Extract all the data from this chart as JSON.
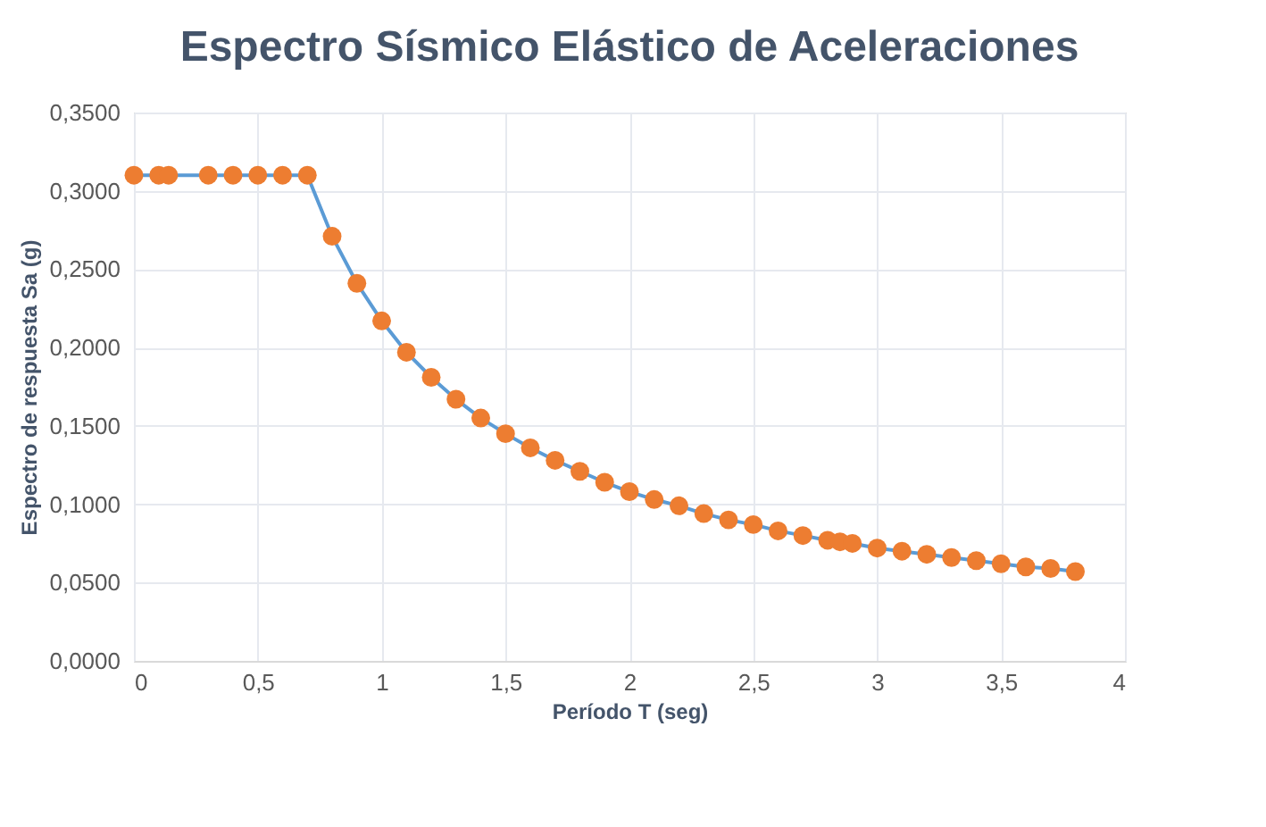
{
  "chart_data": {
    "type": "line",
    "title": "Espectro Sísmico Elástico de Aceleraciones",
    "xlabel": "Período T (seg)",
    "ylabel": "Espectro de respuesta Sa (g)",
    "x": [
      0,
      0.1,
      0.14,
      0.3,
      0.4,
      0.5,
      0.6,
      0.7,
      0.8,
      0.9,
      1.0,
      1.1,
      1.2,
      1.3,
      1.4,
      1.5,
      1.6,
      1.7,
      1.8,
      1.9,
      2.0,
      2.1,
      2.2,
      2.3,
      2.4,
      2.5,
      2.6,
      2.7,
      2.8,
      2.85,
      2.9,
      3.0,
      3.1,
      3.2,
      3.3,
      3.4,
      3.5,
      3.6,
      3.7,
      3.8
    ],
    "series": [
      {
        "color": "#5b9bd5",
        "colors": [
          "#ed7d31",
          "#ed7d31",
          "#ed7d31",
          "#ed7d31",
          "#ed7d31",
          "#ed7d31",
          "#ed7d31",
          "#ed7d31",
          "#ed7d31",
          "#ed7d31",
          "#ed7d31",
          "#ed7d31",
          "#ed7d31",
          "#ed7d31",
          "#ed7d31",
          "#ed7d31",
          "#ed7d31",
          "#ed7d31",
          "#ed7d31",
          "#ed7d31",
          "#ed7d31",
          "#ed7d31",
          "#ed7d31",
          "#ed7d31",
          "#ed7d31",
          "#ed7d31",
          "#ed7d31",
          "#ed7d31",
          "#ed7d31",
          "#ed7d31",
          "#ed7d31",
          "#ed7d31",
          "#ed7d31",
          "#ed7d31",
          "#ed7d31",
          "#ed7d31",
          "#ed7d31",
          "#ed7d31",
          "#ed7d31",
          "#ed7d31"
        ],
        "values": [
          0.31,
          0.31,
          0.31,
          0.31,
          0.31,
          0.31,
          0.31,
          0.31,
          0.271,
          0.241,
          0.217,
          0.197,
          0.181,
          0.167,
          0.155,
          0.145,
          0.136,
          0.128,
          0.121,
          0.114,
          0.108,
          0.103,
          0.099,
          0.094,
          0.09,
          0.087,
          0.083,
          0.08,
          0.077,
          0.076,
          0.075,
          0.072,
          0.07,
          0.068,
          0.066,
          0.064,
          0.062,
          0.06,
          0.059,
          0.057
        ]
      }
    ],
    "xlim": [
      0,
      4
    ],
    "ylim": [
      0,
      0.35
    ],
    "xticks": [
      0,
      {
        "value": 0.5,
        "label": "0,5"
      },
      1,
      {
        "value": 1.5,
        "label": "1,5"
      },
      2,
      {
        "value": 2.5,
        "label": "2,5"
      },
      3,
      {
        "value": 3.5,
        "label": "3,5"
      },
      4
    ],
    "yticks": [
      {
        "value": 0,
        "label": "0,0000"
      },
      {
        "value": 0.05,
        "label": "0,0500"
      },
      {
        "value": 0.1,
        "label": "0,1000"
      },
      {
        "value": 0.15,
        "label": "0,1500"
      },
      {
        "value": 0.2,
        "label": "0,2000"
      },
      {
        "value": 0.25,
        "label": "0,2500"
      },
      {
        "value": 0.3,
        "label": "0,3000"
      },
      {
        "value": 0.35,
        "label": "0,3500"
      }
    ],
    "grid": true,
    "marker": "circle",
    "line_style": "solid"
  }
}
